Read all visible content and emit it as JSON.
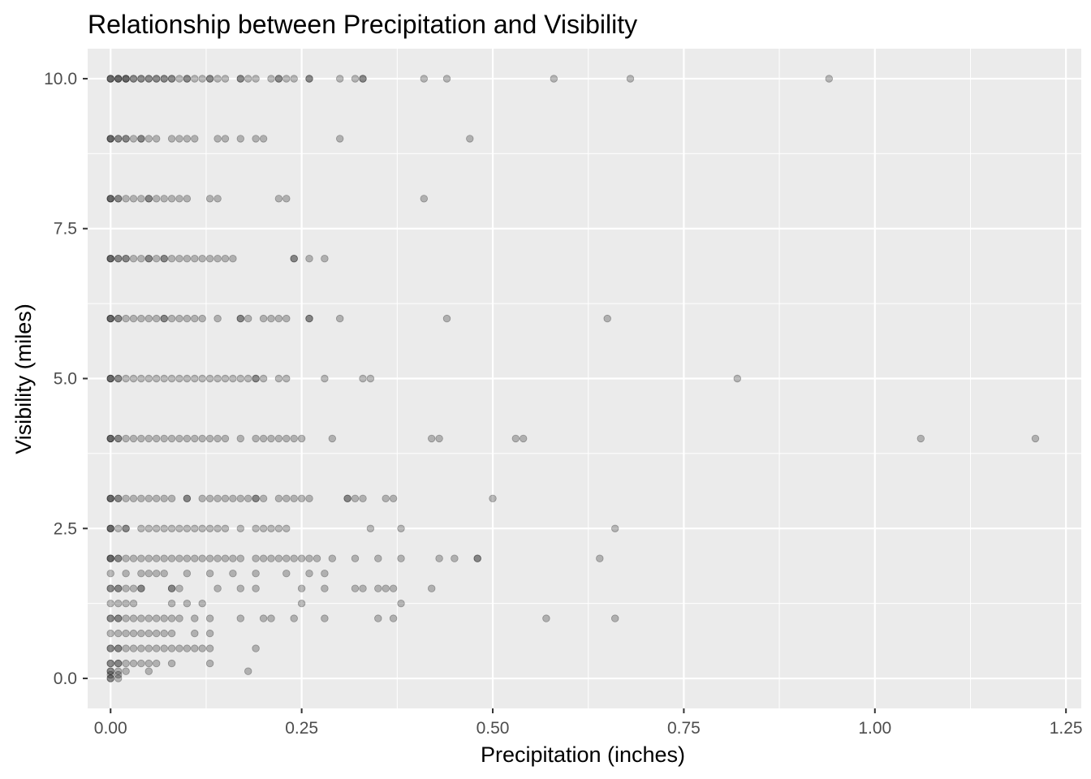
{
  "chart_data": {
    "type": "scatter",
    "title": "Relationship between Precipitation and Visibility",
    "xlabel": "Precipitation (inches)",
    "ylabel": "Visibility (miles)",
    "xlim": [
      -0.03,
      1.27
    ],
    "ylim": [
      -0.5,
      10.5
    ],
    "x_ticks": [
      0.0,
      0.25,
      0.5,
      0.75,
      1.0,
      1.25
    ],
    "x_tick_labels": [
      "0.00",
      "0.25",
      "0.50",
      "0.75",
      "1.00",
      "1.25"
    ],
    "y_ticks": [
      0.0,
      2.5,
      5.0,
      7.5,
      10.0
    ],
    "y_tick_labels": [
      "0.0",
      "2.5",
      "5.0",
      "7.5",
      "10.0"
    ],
    "grid": true,
    "background": "#ebebeb",
    "grid_color": "#ffffff",
    "point_color": "#000000",
    "point_alpha": 0.25,
    "rows": [
      {
        "y": 10,
        "x": [
          0,
          0,
          0,
          0.01,
          0.01,
          0.01,
          0.02,
          0.02,
          0.02,
          0.03,
          0.03,
          0.04,
          0.04,
          0.05,
          0.05,
          0.06,
          0.06,
          0.07,
          0.07,
          0.08,
          0.08,
          0.09,
          0.1,
          0.1,
          0.11,
          0.12,
          0.13,
          0.13,
          0.14,
          0.15,
          0.17,
          0.17,
          0.18,
          0.19,
          0.21,
          0.22,
          0.22,
          0.23,
          0.24,
          0.26,
          0.26,
          0.3,
          0.32,
          0.33,
          0.33,
          0.41,
          0.44,
          0.58,
          0.68,
          0.94
        ]
      },
      {
        "y": 9,
        "x": [
          0,
          0,
          0,
          0.01,
          0.01,
          0.02,
          0.02,
          0.03,
          0.04,
          0.04,
          0.05,
          0.06,
          0.08,
          0.09,
          0.1,
          0.11,
          0.14,
          0.15,
          0.17,
          0.19,
          0.2,
          0.3,
          0.47
        ]
      },
      {
        "y": 8,
        "x": [
          0,
          0,
          0,
          0.01,
          0.01,
          0.02,
          0.03,
          0.04,
          0.05,
          0.05,
          0.06,
          0.07,
          0.08,
          0.09,
          0.1,
          0.13,
          0.14,
          0.22,
          0.23,
          0.41
        ]
      },
      {
        "y": 7,
        "x": [
          0,
          0,
          0,
          0.01,
          0.01,
          0.02,
          0.02,
          0.03,
          0.04,
          0.05,
          0.05,
          0.06,
          0.07,
          0.07,
          0.08,
          0.09,
          0.1,
          0.11,
          0.12,
          0.13,
          0.14,
          0.15,
          0.16,
          0.24,
          0.24,
          0.26,
          0.28
        ]
      },
      {
        "y": 6,
        "x": [
          0,
          0,
          0,
          0.01,
          0.01,
          0.02,
          0.03,
          0.04,
          0.05,
          0.06,
          0.07,
          0.07,
          0.08,
          0.09,
          0.1,
          0.11,
          0.12,
          0.14,
          0.17,
          0.17,
          0.18,
          0.2,
          0.21,
          0.22,
          0.23,
          0.26,
          0.26,
          0.3,
          0.44,
          0.65
        ]
      },
      {
        "y": 5,
        "x": [
          0,
          0,
          0,
          0.01,
          0.01,
          0.02,
          0.03,
          0.04,
          0.05,
          0.06,
          0.07,
          0.08,
          0.09,
          0.1,
          0.11,
          0.12,
          0.13,
          0.14,
          0.15,
          0.16,
          0.17,
          0.18,
          0.19,
          0.19,
          0.2,
          0.22,
          0.23,
          0.28,
          0.33,
          0.34,
          0.82
        ]
      },
      {
        "y": 4,
        "x": [
          0,
          0,
          0,
          0.01,
          0.01,
          0.02,
          0.03,
          0.04,
          0.05,
          0.06,
          0.07,
          0.08,
          0.09,
          0.1,
          0.11,
          0.12,
          0.13,
          0.14,
          0.15,
          0.17,
          0.19,
          0.2,
          0.21,
          0.22,
          0.23,
          0.24,
          0.25,
          0.29,
          0.42,
          0.43,
          0.53,
          0.54,
          1.06,
          1.21
        ]
      },
      {
        "y": 3,
        "x": [
          0,
          0,
          0,
          0.01,
          0.01,
          0.02,
          0.03,
          0.04,
          0.05,
          0.06,
          0.07,
          0.08,
          0.1,
          0.1,
          0.12,
          0.13,
          0.14,
          0.15,
          0.16,
          0.17,
          0.18,
          0.19,
          0.19,
          0.2,
          0.22,
          0.23,
          0.24,
          0.25,
          0.26,
          0.31,
          0.31,
          0.32,
          0.33,
          0.36,
          0.37,
          0.5
        ]
      },
      {
        "y": 2.5,
        "x": [
          0,
          0,
          0,
          0.01,
          0.02,
          0.02,
          0.04,
          0.05,
          0.06,
          0.07,
          0.08,
          0.09,
          0.1,
          0.11,
          0.12,
          0.13,
          0.14,
          0.15,
          0.17,
          0.19,
          0.2,
          0.21,
          0.22,
          0.23,
          0.34,
          0.38,
          0.66
        ]
      },
      {
        "y": 2,
        "x": [
          0,
          0,
          0,
          0.01,
          0.01,
          0.02,
          0.03,
          0.04,
          0.05,
          0.06,
          0.07,
          0.08,
          0.09,
          0.1,
          0.11,
          0.12,
          0.13,
          0.14,
          0.15,
          0.16,
          0.17,
          0.19,
          0.2,
          0.21,
          0.22,
          0.23,
          0.24,
          0.25,
          0.26,
          0.27,
          0.29,
          0.32,
          0.35,
          0.38,
          0.43,
          0.45,
          0.48,
          0.48,
          0.64
        ]
      },
      {
        "y": 1.75,
        "x": [
          0,
          0.02,
          0.04,
          0.05,
          0.06,
          0.07,
          0.1,
          0.13,
          0.16,
          0.19,
          0.23,
          0.26,
          0.28
        ]
      },
      {
        "y": 1.5,
        "x": [
          0,
          0,
          0.01,
          0.01,
          0.02,
          0.03,
          0.04,
          0.04,
          0.08,
          0.08,
          0.09,
          0.14,
          0.17,
          0.19,
          0.25,
          0.28,
          0.32,
          0.33,
          0.35,
          0.36,
          0.37,
          0.42
        ]
      },
      {
        "y": 1.25,
        "x": [
          0,
          0.01,
          0.02,
          0.03,
          0.08,
          0.1,
          0.12,
          0.25,
          0.38
        ]
      },
      {
        "y": 1,
        "x": [
          0,
          0,
          0.01,
          0.01,
          0.02,
          0.03,
          0.04,
          0.05,
          0.06,
          0.07,
          0.08,
          0.09,
          0.11,
          0.13,
          0.17,
          0.2,
          0.21,
          0.24,
          0.28,
          0.35,
          0.37,
          0.57,
          0.66
        ]
      },
      {
        "y": 0.75,
        "x": [
          0,
          0.01,
          0.02,
          0.03,
          0.04,
          0.05,
          0.06,
          0.07,
          0.08,
          0.11,
          0.13
        ]
      },
      {
        "y": 0.5,
        "x": [
          0,
          0,
          0.01,
          0.01,
          0.02,
          0.03,
          0.04,
          0.05,
          0.06,
          0.07,
          0.08,
          0.09,
          0.1,
          0.11,
          0.12,
          0.13,
          0.19
        ]
      },
      {
        "y": 0.25,
        "x": [
          0,
          0,
          0.01,
          0.01,
          0.02,
          0.03,
          0.04,
          0.05,
          0.06,
          0.08,
          0.13
        ]
      },
      {
        "y": 0.12,
        "x": [
          0,
          0,
          0.01,
          0.02,
          0.05,
          0.18
        ]
      },
      {
        "y": 0.06,
        "x": [
          0,
          0.01
        ]
      },
      {
        "y": 0,
        "x": [
          0,
          0,
          0.01
        ]
      }
    ]
  }
}
